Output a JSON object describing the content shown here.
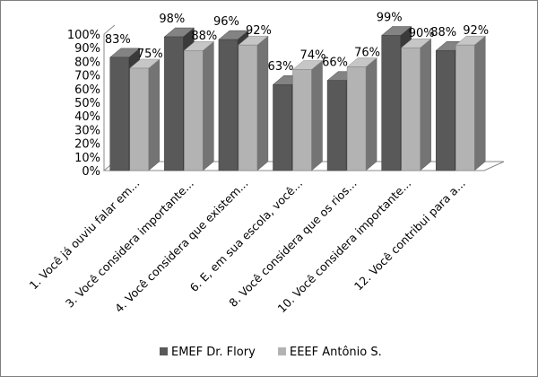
{
  "chart_data": {
    "type": "bar",
    "style": "3d-clustered-column",
    "categories": [
      "1. Você já ouviu falar em...",
      "3. Você considera importante...",
      "4. Você considera que existem...",
      "6. E, em sua escola, você...",
      "8. Você considera que os rios...",
      "10. Você considera importante...",
      "12. Você contribui para a..."
    ],
    "series": [
      {
        "name": "EMEF Dr. Flory",
        "color": "#595959",
        "values": [
          83,
          98,
          96,
          63,
          66,
          99,
          88
        ],
        "labels": [
          "83%",
          "98%",
          "96%",
          "63%",
          "66%",
          "99%",
          "88%"
        ]
      },
      {
        "name": "EEEF Antônio S.",
        "color": "#b3b3b3",
        "values": [
          75,
          88,
          92,
          74,
          76,
          90,
          92
        ],
        "labels": [
          "75%",
          "88%",
          "92%",
          "74%",
          "76%",
          "90%",
          "92%"
        ]
      }
    ],
    "yticks": [
      "0%",
      "10%",
      "20%",
      "30%",
      "40%",
      "50%",
      "60%",
      "70%",
      "80%",
      "90%",
      "100%"
    ],
    "ylim": [
      0,
      100
    ],
    "grid": false,
    "legend": "bottom"
  }
}
